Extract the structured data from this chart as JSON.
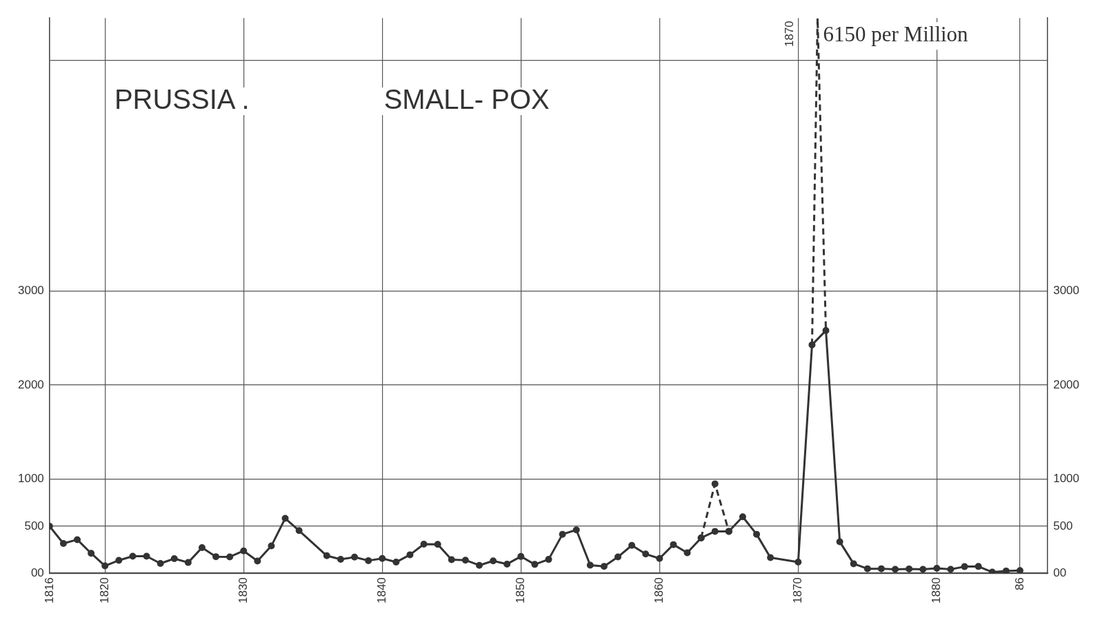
{
  "chart_data": {
    "type": "line",
    "title": "PRUSSIA .",
    "subtitle": "SMALL- POX",
    "annotations": [
      "6150 per Million",
      "1870"
    ],
    "series": [
      {
        "color": "#333333",
        "line_style": "solid",
        "marker": "circle",
        "x": [
          1816,
          1817,
          1818,
          1819,
          1820,
          1821,
          1822,
          1823,
          1824,
          1825,
          1826,
          1827,
          1828,
          1829,
          1830,
          1831,
          1832,
          1833,
          1834,
          1836,
          1837,
          1838,
          1839,
          1840,
          1841,
          1842,
          1843,
          1844,
          1845,
          1846,
          1847,
          1848,
          1849,
          1850,
          1851,
          1852,
          1853,
          1854,
          1855,
          1856,
          1857,
          1858,
          1859,
          1860,
          1861,
          1862,
          1863,
          1864,
          1865,
          1866,
          1867,
          1868,
          1870,
          1871,
          1872,
          1873,
          1874,
          1875,
          1876,
          1877,
          1878,
          1879,
          1880,
          1881,
          1882,
          1883,
          1884,
          1885,
          1886
        ],
        "values": [
          500,
          316,
          357,
          212,
          78,
          137,
          181,
          181,
          104,
          155,
          114,
          272,
          176,
          174,
          238,
          130,
          290,
          583,
          453,
          186,
          148,
          171,
          134,
          157,
          118,
          196,
          309,
          307,
          144,
          139,
          84,
          131,
          97,
          178,
          94,
          147,
          414,
          461,
          86,
          73,
          173,
          296,
          204,
          157,
          304,
          217,
          375,
          445,
          445,
          600,
          414,
          166,
          118,
          2427,
          2579,
          335,
          101,
          48,
          48,
          41,
          46,
          41,
          53,
          41,
          70,
          72,
          12,
          24,
          29
        ]
      },
      {
        "color": "#333333",
        "line_style": "dashed",
        "marker": "circle",
        "x": [
          1863,
          1864,
          1865
        ],
        "values": [
          375,
          950,
          445
        ]
      },
      {
        "color": "#333333",
        "line_style": "dashed",
        "marker": "none",
        "x": [
          1871,
          1871.4,
          1872
        ],
        "values": [
          2427,
          5900,
          2579
        ]
      }
    ],
    "xlim": [
      1816,
      1888
    ],
    "xticks": [
      1816,
      1820,
      1830,
      1840,
      1850,
      1860,
      1870,
      1880,
      {
        "value": 1886,
        "label": "86"
      }
    ],
    "ylim": [
      0,
      5900
    ],
    "yticks": [
      {
        "value": 0,
        "label": "00"
      },
      500,
      1000,
      2000,
      3000,
      {
        "value": 5450,
        "label": null
      }
    ],
    "y2lim": [
      0,
      5900
    ],
    "y2ticks": [
      {
        "value": 0,
        "label": "00"
      },
      500,
      1000,
      2000,
      3000,
      {
        "value": 5450,
        "label": null
      }
    ],
    "grid": true,
    "legend": false
  }
}
